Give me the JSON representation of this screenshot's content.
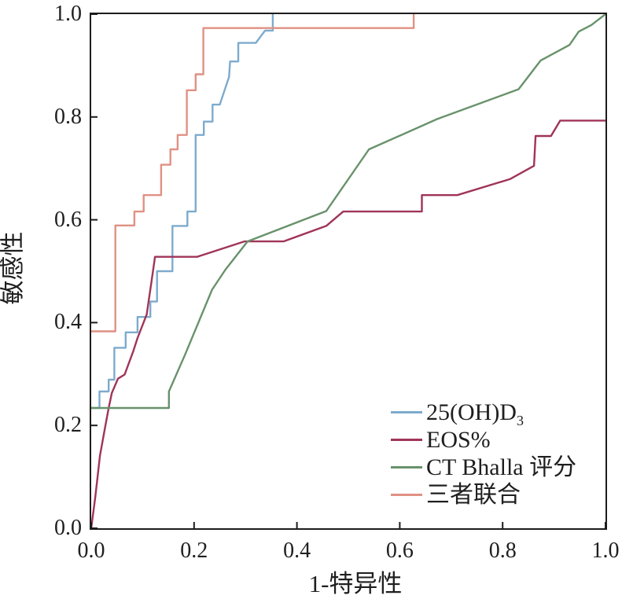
{
  "axes": {
    "x_title": "1-特异性",
    "y_title": "敏感性"
  },
  "legend": {
    "items": [
      {
        "label": "25(OH)D",
        "sub": "3"
      },
      {
        "label": "EOS%",
        "sub": ""
      },
      {
        "label": "CT Bhalla 评分",
        "sub": ""
      },
      {
        "label": "三者联合",
        "sub": ""
      }
    ]
  },
  "colors": {
    "axis": "#1c1c1c",
    "text": "#1f1f1f",
    "curve_25ohd3": "#7dabcd",
    "curve_eos": "#a03459",
    "curve_ct_bhalla": "#68926b",
    "curve_combined": "#df9183"
  },
  "chart_data": {
    "type": "line",
    "subtype": "ROC",
    "title": "",
    "xlabel": "1-特异性",
    "ylabel": "敏感性",
    "xlim": [
      0,
      1
    ],
    "ylim": [
      0,
      1
    ],
    "grid": false,
    "legend_position": "lower right inside",
    "x_tick_values": [
      0,
      0.2,
      0.4,
      0.6,
      0.8,
      1.0
    ],
    "x_tick_labels": [
      "0.0",
      "0.2",
      "0.4",
      "0.6",
      "0.8",
      "1.0"
    ],
    "y_tick_values": [
      0,
      0.2,
      0.4,
      0.6,
      0.8,
      1.0
    ],
    "y_tick_labels": [
      "0.0",
      "0.2",
      "0.4",
      "0.6",
      "0.8",
      "1.0"
    ],
    "series": [
      {
        "id": "25ohd3",
        "name": "25(OH)D3",
        "color": "#7dabcd",
        "points": [
          [
            0,
            0.234
          ],
          [
            0.016,
            0.234
          ],
          [
            0.016,
            0.266
          ],
          [
            0.034,
            0.266
          ],
          [
            0.034,
            0.289
          ],
          [
            0.045,
            0.289
          ],
          [
            0.045,
            0.351
          ],
          [
            0.067,
            0.351
          ],
          [
            0.067,
            0.381
          ],
          [
            0.09,
            0.381
          ],
          [
            0.09,
            0.411
          ],
          [
            0.115,
            0.411
          ],
          [
            0.115,
            0.441
          ],
          [
            0.128,
            0.441
          ],
          [
            0.128,
            0.5
          ],
          [
            0.158,
            0.5
          ],
          [
            0.158,
            0.588
          ],
          [
            0.187,
            0.588
          ],
          [
            0.187,
            0.616
          ],
          [
            0.203,
            0.616
          ],
          [
            0.203,
            0.765
          ],
          [
            0.219,
            0.765
          ],
          [
            0.219,
            0.791
          ],
          [
            0.236,
            0.791
          ],
          [
            0.236,
            0.824
          ],
          [
            0.25,
            0.824
          ],
          [
            0.268,
            0.878
          ],
          [
            0.27,
            0.908
          ],
          [
            0.286,
            0.908
          ],
          [
            0.286,
            0.944
          ],
          [
            0.32,
            0.944
          ],
          [
            0.338,
            0.968
          ],
          [
            0.353,
            0.968
          ],
          [
            0.353,
            1.0
          ]
        ]
      },
      {
        "id": "eos",
        "name": "EOS%",
        "color": "#a03459",
        "points": [
          [
            0,
            0
          ],
          [
            0.008,
            0.061
          ],
          [
            0.017,
            0.141
          ],
          [
            0.026,
            0.191
          ],
          [
            0.034,
            0.234
          ],
          [
            0.04,
            0.263
          ],
          [
            0.052,
            0.291
          ],
          [
            0.065,
            0.299
          ],
          [
            0.082,
            0.345
          ],
          [
            0.09,
            0.37
          ],
          [
            0.108,
            0.416
          ],
          [
            0.116,
            0.472
          ],
          [
            0.123,
            0.52
          ],
          [
            0.124,
            0.528
          ],
          [
            0.206,
            0.528
          ],
          [
            0.298,
            0.558
          ],
          [
            0.374,
            0.558
          ],
          [
            0.457,
            0.588
          ],
          [
            0.49,
            0.616
          ],
          [
            0.643,
            0.616
          ],
          [
            0.643,
            0.648
          ],
          [
            0.712,
            0.648
          ],
          [
            0.814,
            0.679
          ],
          [
            0.861,
            0.705
          ],
          [
            0.864,
            0.763
          ],
          [
            0.894,
            0.763
          ],
          [
            0.912,
            0.793
          ],
          [
            1,
            0.793
          ]
        ]
      },
      {
        "id": "ct-bhalla",
        "name": "CT Bhalla score",
        "color": "#68926b",
        "points": [
          [
            0,
            0.234
          ],
          [
            0.151,
            0.234
          ],
          [
            0.151,
            0.266
          ],
          [
            0.183,
            0.339
          ],
          [
            0.235,
            0.464
          ],
          [
            0.261,
            0.503
          ],
          [
            0.304,
            0.558
          ],
          [
            0.457,
            0.617
          ],
          [
            0.54,
            0.737
          ],
          [
            0.673,
            0.796
          ],
          [
            0.831,
            0.854
          ],
          [
            0.874,
            0.91
          ],
          [
            0.93,
            0.94
          ],
          [
            0.948,
            0.966
          ],
          [
            0.973,
            0.979
          ],
          [
            1,
            1
          ]
        ]
      },
      {
        "id": "combined",
        "name": "三者联合",
        "color": "#df9183",
        "points": [
          [
            0,
            0.383
          ],
          [
            0.047,
            0.383
          ],
          [
            0.047,
            0.589
          ],
          [
            0.084,
            0.589
          ],
          [
            0.084,
            0.616
          ],
          [
            0.102,
            0.616
          ],
          [
            0.102,
            0.648
          ],
          [
            0.136,
            0.648
          ],
          [
            0.136,
            0.707
          ],
          [
            0.154,
            0.707
          ],
          [
            0.154,
            0.737
          ],
          [
            0.168,
            0.737
          ],
          [
            0.168,
            0.765
          ],
          [
            0.186,
            0.765
          ],
          [
            0.186,
            0.852
          ],
          [
            0.203,
            0.852
          ],
          [
            0.203,
            0.883
          ],
          [
            0.218,
            0.883
          ],
          [
            0.218,
            0.973
          ],
          [
            0.627,
            0.973
          ],
          [
            0.627,
            1.0
          ]
        ]
      }
    ]
  }
}
